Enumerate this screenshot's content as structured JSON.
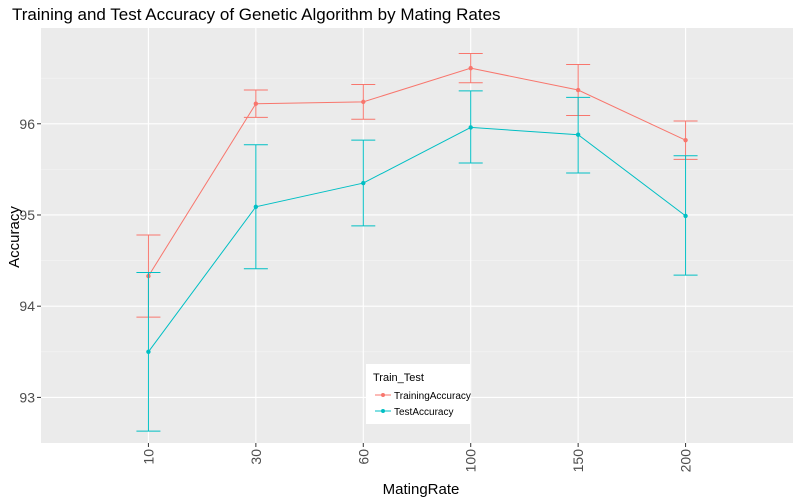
{
  "chart_data": {
    "type": "line",
    "title": "Training and Test Accuracy of Genetic Algorithm by Mating Rates",
    "xlabel": "MatingRate",
    "ylabel": "Accuracy",
    "categories": [
      "10",
      "30",
      "60",
      "100",
      "150",
      "200"
    ],
    "y_ticks": [
      93,
      94,
      95,
      96
    ],
    "ylim": [
      92.5,
      97.05
    ],
    "grid": true,
    "error_bars": true,
    "legend": {
      "title": "Train_Test",
      "placement": "bottom-center-inside",
      "entries": [
        "TrainingAccuracy",
        "TestAccuracy"
      ]
    },
    "series": [
      {
        "name": "TrainingAccuracy",
        "color": "#f8766d",
        "values": [
          94.33,
          96.22,
          96.24,
          96.61,
          96.37,
          95.82
        ],
        "lower": [
          93.88,
          96.07,
          96.05,
          96.45,
          96.09,
          95.61
        ],
        "upper": [
          94.78,
          96.37,
          96.43,
          96.77,
          96.65,
          96.03
        ]
      },
      {
        "name": "TestAccuracy",
        "color": "#00bfc4",
        "values": [
          93.5,
          95.09,
          95.35,
          95.96,
          95.88,
          94.99
        ],
        "lower": [
          92.63,
          94.41,
          94.88,
          95.57,
          95.46,
          94.34
        ],
        "upper": [
          94.37,
          95.77,
          95.82,
          96.36,
          96.29,
          95.65
        ]
      }
    ]
  }
}
